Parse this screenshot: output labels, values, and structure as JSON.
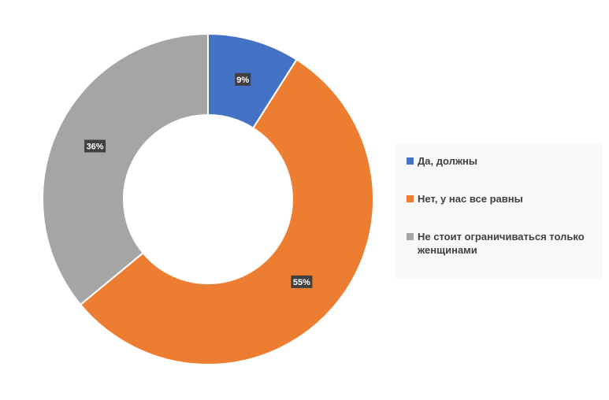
{
  "chart_data": {
    "type": "pie",
    "donut": true,
    "title": "",
    "legend_position": "right",
    "categories": [
      "Да, должны",
      "Нет, у нас все равны",
      "Не стоит ограничиваться только женщинами"
    ],
    "values": [
      9,
      55,
      36
    ],
    "labels": [
      "9%",
      "55%",
      "36%"
    ],
    "colors": [
      "#4472c4",
      "#ed7d31",
      "#a5a5a5"
    ]
  }
}
